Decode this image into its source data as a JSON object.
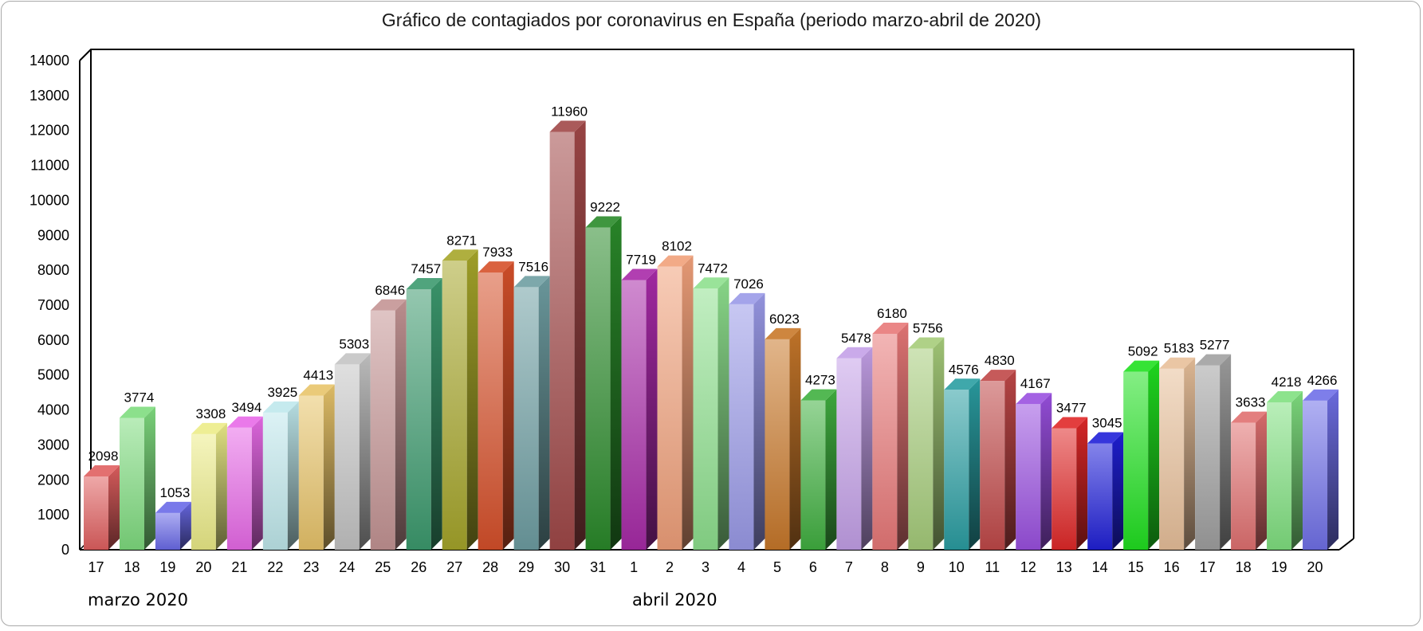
{
  "title": "Gráfico de contagiados por coronavirus en España (periodo marzo-abril de 2020)",
  "chart_data": {
    "type": "bar",
    "title": "Gráfico de contagiados por coronavirus en España (periodo marzo-abril de 2020)",
    "xlabel": "",
    "ylabel": "",
    "ylim": [
      0,
      14000
    ],
    "yticks": [
      0,
      1000,
      2000,
      3000,
      4000,
      5000,
      6000,
      7000,
      8000,
      9000,
      10000,
      11000,
      12000,
      13000,
      14000
    ],
    "grid": false,
    "style": "3d",
    "categories": [
      "17",
      "18",
      "19",
      "20",
      "21",
      "22",
      "23",
      "24",
      "25",
      "26",
      "27",
      "28",
      "29",
      "30",
      "31",
      "1",
      "2",
      "3",
      "4",
      "5",
      "6",
      "7",
      "8",
      "9",
      "10",
      "11",
      "12",
      "13",
      "14",
      "15",
      "16",
      "17",
      "18",
      "19",
      "20"
    ],
    "values": [
      2098,
      3774,
      1053,
      3308,
      3494,
      3925,
      4413,
      5303,
      6846,
      7457,
      8271,
      7933,
      7516,
      11960,
      9222,
      7719,
      8102,
      7472,
      7026,
      6023,
      4273,
      5478,
      6180,
      5756,
      4576,
      4830,
      4167,
      3477,
      3045,
      5092,
      5183,
      5277,
      3633,
      4218,
      4266
    ],
    "colors": [
      "#e06060",
      "#7fdc7f",
      "#6a6ae8",
      "#ecec88",
      "#e86ae8",
      "#bfe8ec",
      "#e8c46a",
      "#c4c4c4",
      "#c49494",
      "#3c9a6e",
      "#a6a62a",
      "#d6502a",
      "#6e9ea2",
      "#a04848",
      "#2a8a2a",
      "#a82aa8",
      "#f0a07a",
      "#8ee08e",
      "#9a9ae8",
      "#c8782a",
      "#40b040",
      "#c4a0e8",
      "#e87878",
      "#a6cc7a",
      "#2a9ea2",
      "#c04848",
      "#9a50e0",
      "#e02828",
      "#2020d8",
      "#20e020",
      "#e8c09a",
      "#a0a0a0",
      "#e07070",
      "#80e080",
      "#7070e8"
    ],
    "group_labels": [
      {
        "label": "marzo 2020",
        "start_index": 0
      },
      {
        "label": "abril 2020",
        "start_index": 15
      }
    ]
  }
}
